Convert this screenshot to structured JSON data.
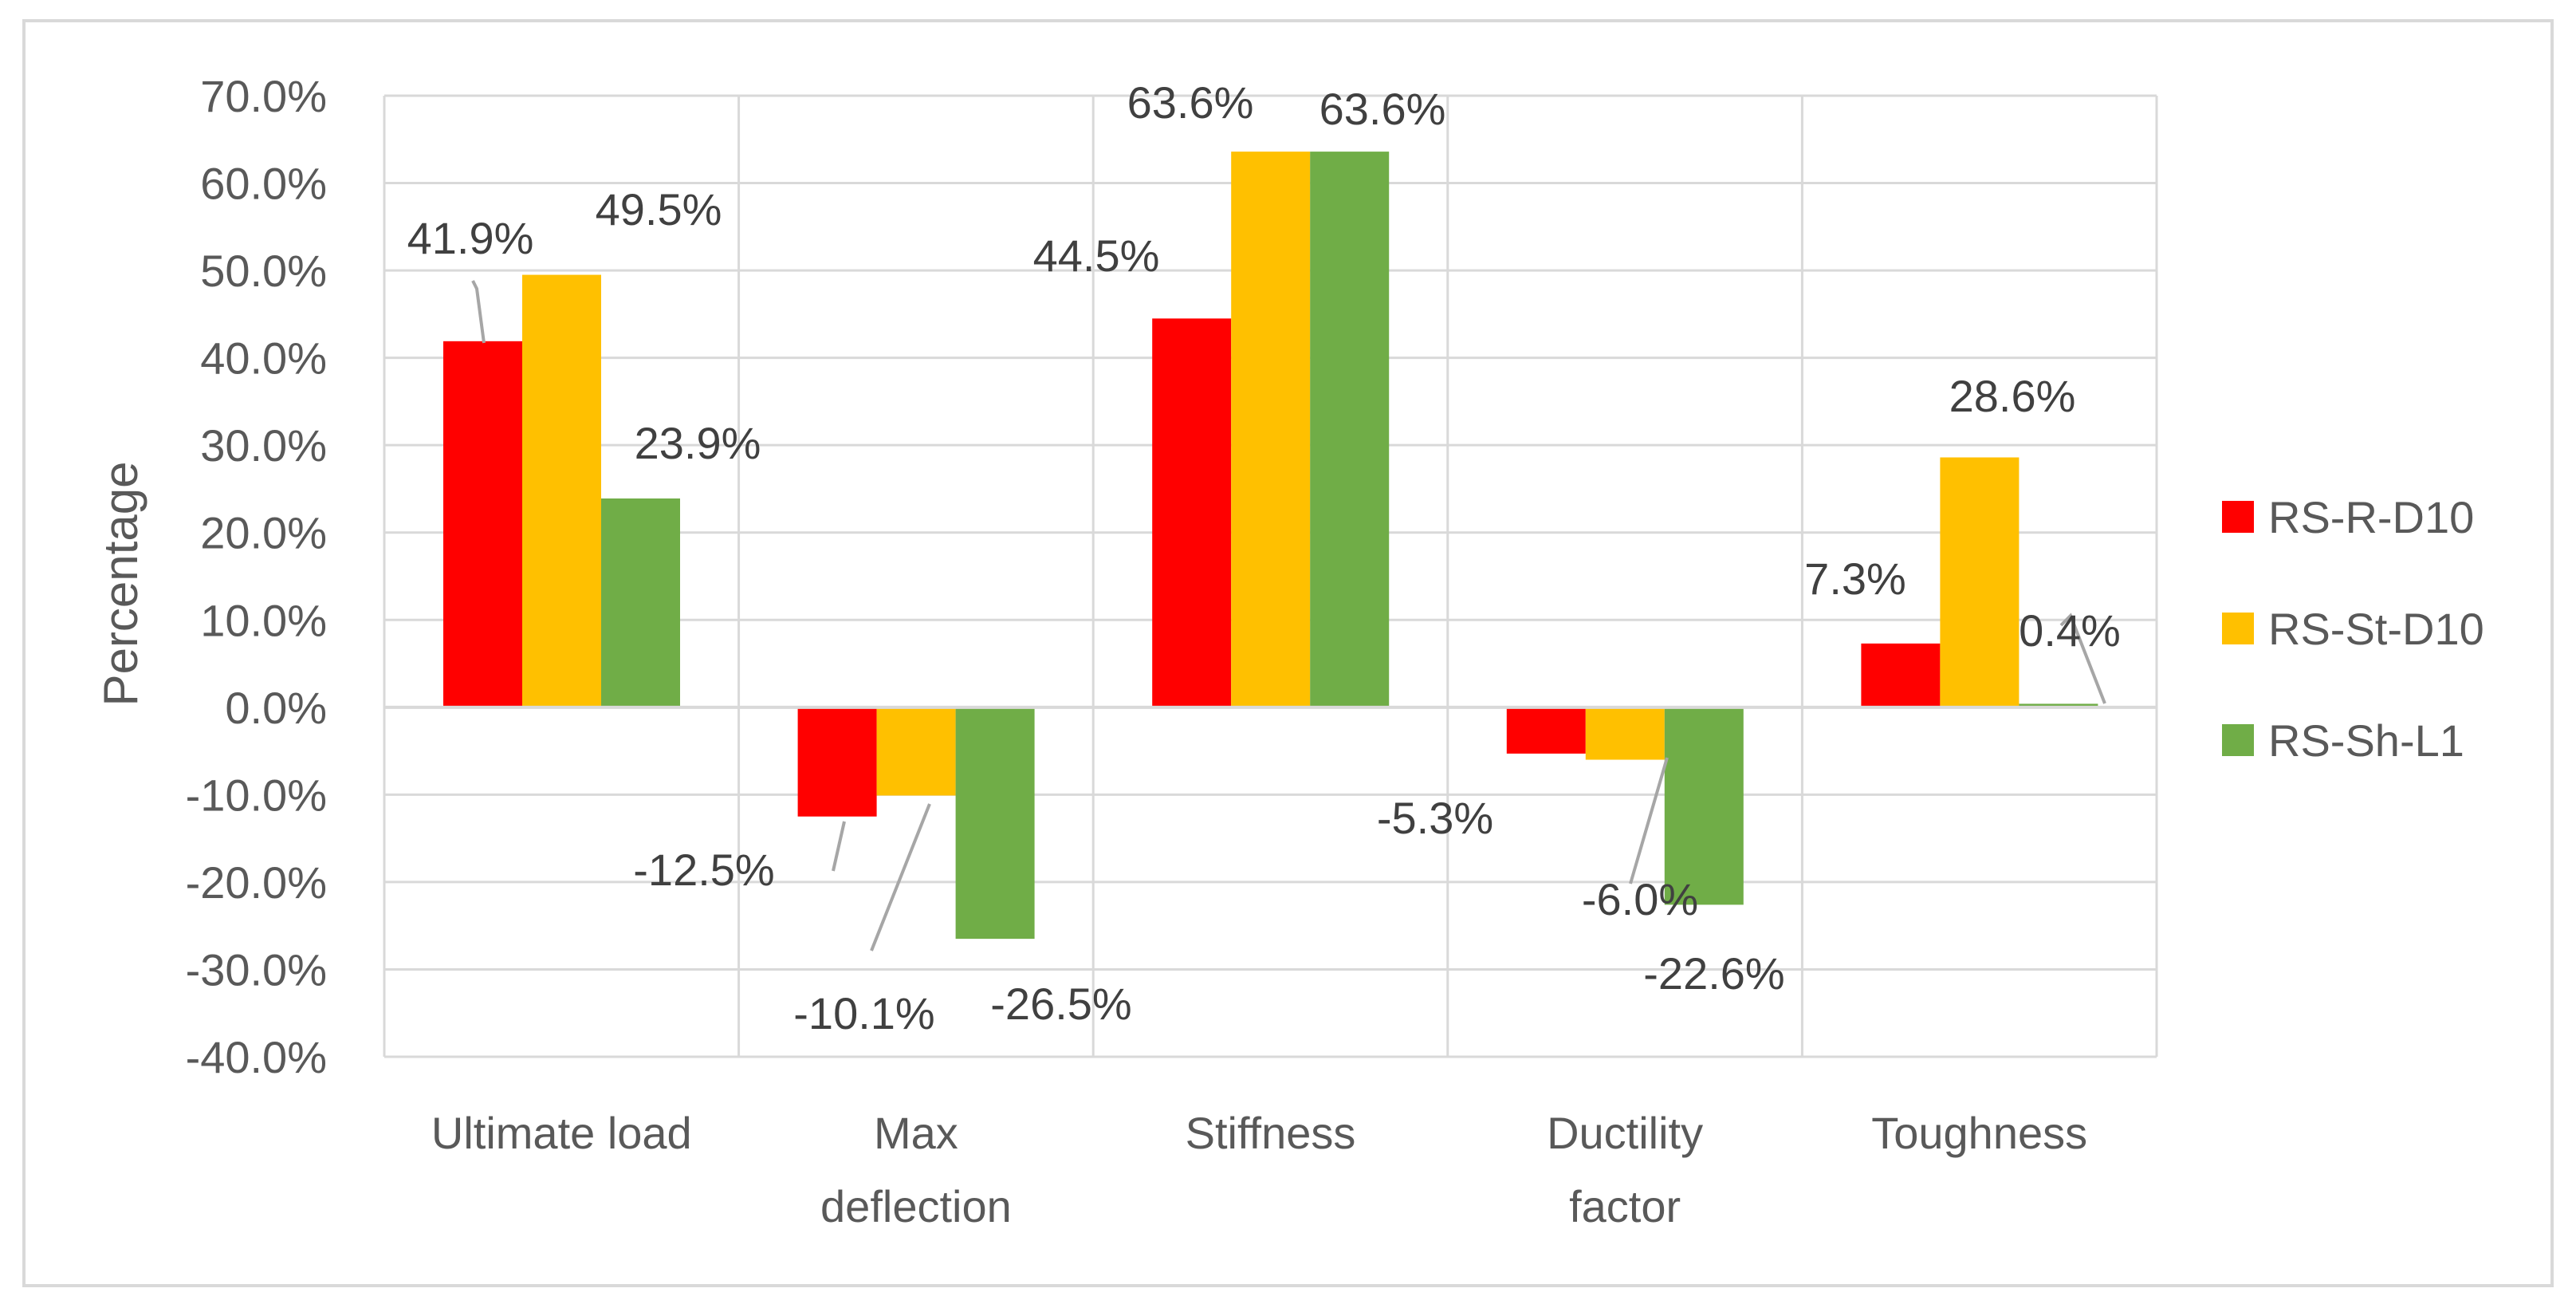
{
  "chart_data": {
    "type": "bar",
    "title": "",
    "xlabel": "",
    "ylabel": "Percentage",
    "ylim": [
      -40,
      70
    ],
    "ytick_step": 10,
    "ytick_labels": [
      "70.0%",
      "60.0%",
      "50.0%",
      "40.0%",
      "30.0%",
      "20.0%",
      "10.0%",
      "0.0%",
      "-10.0%",
      "-20.0%",
      "-30.0%",
      "-40.0%"
    ],
    "grid": true,
    "legend_position": "right",
    "categories": [
      [
        "Ultimate load"
      ],
      [
        "Max",
        "deflection"
      ],
      [
        "Stiffness"
      ],
      [
        "Ductility",
        "factor"
      ],
      [
        "Toughness"
      ]
    ],
    "series": [
      {
        "name": "RS-R-D10",
        "color": "#ff0000",
        "values": [
          41.9,
          -12.5,
          44.5,
          -5.3,
          7.3
        ],
        "labels": [
          "41.9%",
          "-12.5%",
          "44.5%",
          "-5.3%",
          "7.3%"
        ]
      },
      {
        "name": "RS-St-D10",
        "color": "#ffc000",
        "values": [
          49.5,
          -10.1,
          63.6,
          -6.0,
          28.6
        ],
        "labels": [
          "49.5%",
          "-10.1%",
          "63.6%",
          "-6.0%",
          "28.6%"
        ]
      },
      {
        "name": "RS-Sh-L1",
        "color": "#70ad47",
        "values": [
          23.9,
          -26.5,
          63.6,
          -22.6,
          0.4
        ],
        "labels": [
          "23.9%",
          "-26.5%",
          "63.6%",
          "-22.6%",
          "0.4%"
        ]
      }
    ]
  }
}
